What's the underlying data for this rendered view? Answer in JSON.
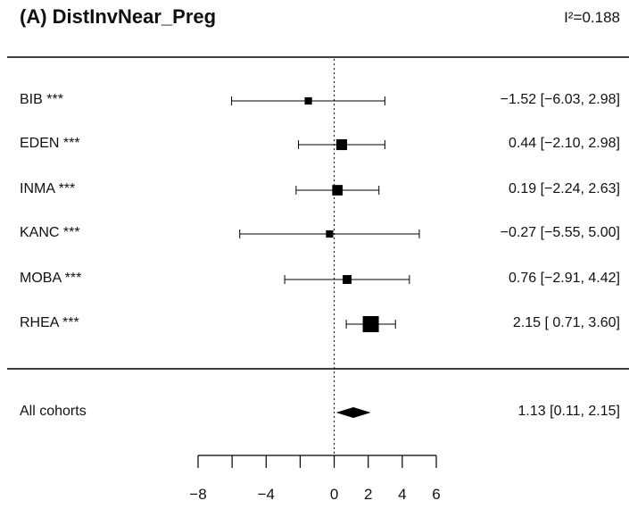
{
  "title": "(A) DistInvNear_Preg",
  "heterogeneity": "I²=0.188",
  "chart_data": {
    "type": "forest",
    "title": "(A) DistInvNear_Preg",
    "heterogeneity": "I²=0.188",
    "reference_line": 0,
    "xlim": [
      -8,
      6
    ],
    "x_ticks": [
      -8,
      -6,
      -4,
      -2,
      0,
      2,
      4,
      6
    ],
    "x_tick_labels": [
      "−8",
      "",
      "−4",
      "",
      "0",
      "2",
      "4",
      "6"
    ],
    "studies": [
      {
        "label": "BIB ***",
        "estimate": -1.52,
        "lower": -6.03,
        "upper": 2.98,
        "weight": 0.3,
        "ci_text": "−1.52 [−6.03, 2.98]"
      },
      {
        "label": "EDEN ***",
        "estimate": 0.44,
        "lower": -2.1,
        "upper": 2.98,
        "weight": 0.58,
        "ci_text": "0.44 [−2.10, 2.98]"
      },
      {
        "label": "INMA ***",
        "estimate": 0.19,
        "lower": -2.24,
        "upper": 2.63,
        "weight": 0.55,
        "ci_text": "0.19 [−2.24, 2.63]"
      },
      {
        "label": "KANC ***",
        "estimate": -0.27,
        "lower": -5.55,
        "upper": 5.0,
        "weight": 0.3,
        "ci_text": "−0.27 [−5.55, 5.00]"
      },
      {
        "label": "MOBA ***",
        "estimate": 0.76,
        "lower": -2.91,
        "upper": 4.42,
        "weight": 0.42,
        "ci_text": "0.76 [−2.91, 4.42]"
      },
      {
        "label": "RHEA ***",
        "estimate": 2.15,
        "lower": 0.71,
        "upper": 3.6,
        "weight": 1.0,
        "ci_text": "2.15 [ 0.71, 3.60]"
      }
    ],
    "pooled": {
      "label": "All cohorts",
      "estimate": 1.13,
      "lower": 0.11,
      "upper": 2.15,
      "ci_text": "1.13 [0.11, 2.15]"
    }
  }
}
